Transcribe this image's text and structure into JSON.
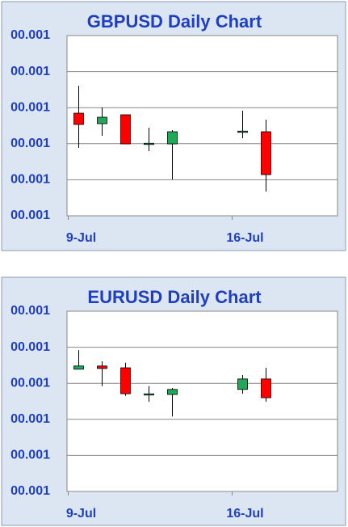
{
  "chart_data": [
    {
      "type": "candlestick",
      "title": "GBPUSD Daily Chart",
      "categories": [
        "9-Jul",
        null,
        null,
        null,
        null,
        null,
        null,
        "16-Jul",
        null
      ],
      "open": [
        384.7,
        355.6,
        380.3,
        299.5,
        299.5,
        null,
        null,
        333.2,
        333.2
      ],
      "high": [
        461.0,
        400.4,
        380.3,
        344.4,
        337.7,
        null,
        null,
        391.5,
        366.8
      ],
      "low": [
        288.3,
        322.0,
        299.5,
        279.4,
        200.9,
        null,
        null,
        315.2,
        167.3
      ],
      "close": [
        353.4,
        373.5,
        299.5,
        299.5,
        333.2,
        null,
        null,
        333.2,
        214.3
      ],
      "up_color": "#1faa5a",
      "down_color": "#ff0000",
      "ylim": [
        100.001,
        600.001
      ],
      "yticks": [
        {
          "value": 100.001,
          "label": "00.001"
        },
        {
          "value": 200.001,
          "label": "00.001"
        },
        {
          "value": 300.001,
          "label": "00.001"
        },
        {
          "value": 400.001,
          "label": "00.001"
        },
        {
          "value": 500.001,
          "label": "00.001"
        },
        {
          "value": 600.001,
          "label": "00.001"
        }
      ],
      "grid": true
    },
    {
      "type": "candlestick",
      "title": "EURUSD Daily Chart",
      "categories": [
        "9-Jul",
        null,
        null,
        null,
        null,
        null,
        null,
        "16-Jul",
        null
      ],
      "open": [
        439,
        448,
        443,
        369,
        369,
        null,
        null,
        383,
        412
      ],
      "high": [
        492,
        461,
        457,
        392,
        387,
        null,
        null,
        423,
        443
      ],
      "low": [
        439,
        392,
        365,
        349,
        308,
        null,
        null,
        371,
        349
      ],
      "close": [
        448,
        441,
        371,
        369,
        383,
        null,
        null,
        412,
        360
      ],
      "up_color": "#1faa5a",
      "down_color": "#ff0000",
      "ylim": [
        100.001,
        600.001
      ],
      "yticks": [
        {
          "value": 100.001,
          "label": "00.001"
        },
        {
          "value": 200.001,
          "label": "00.001"
        },
        {
          "value": 300.001,
          "label": "00.001"
        },
        {
          "value": 400.001,
          "label": "00.001"
        },
        {
          "value": 500.001,
          "label": "00.001"
        },
        {
          "value": 600.001,
          "label": "00.001"
        }
      ],
      "grid": true
    }
  ]
}
